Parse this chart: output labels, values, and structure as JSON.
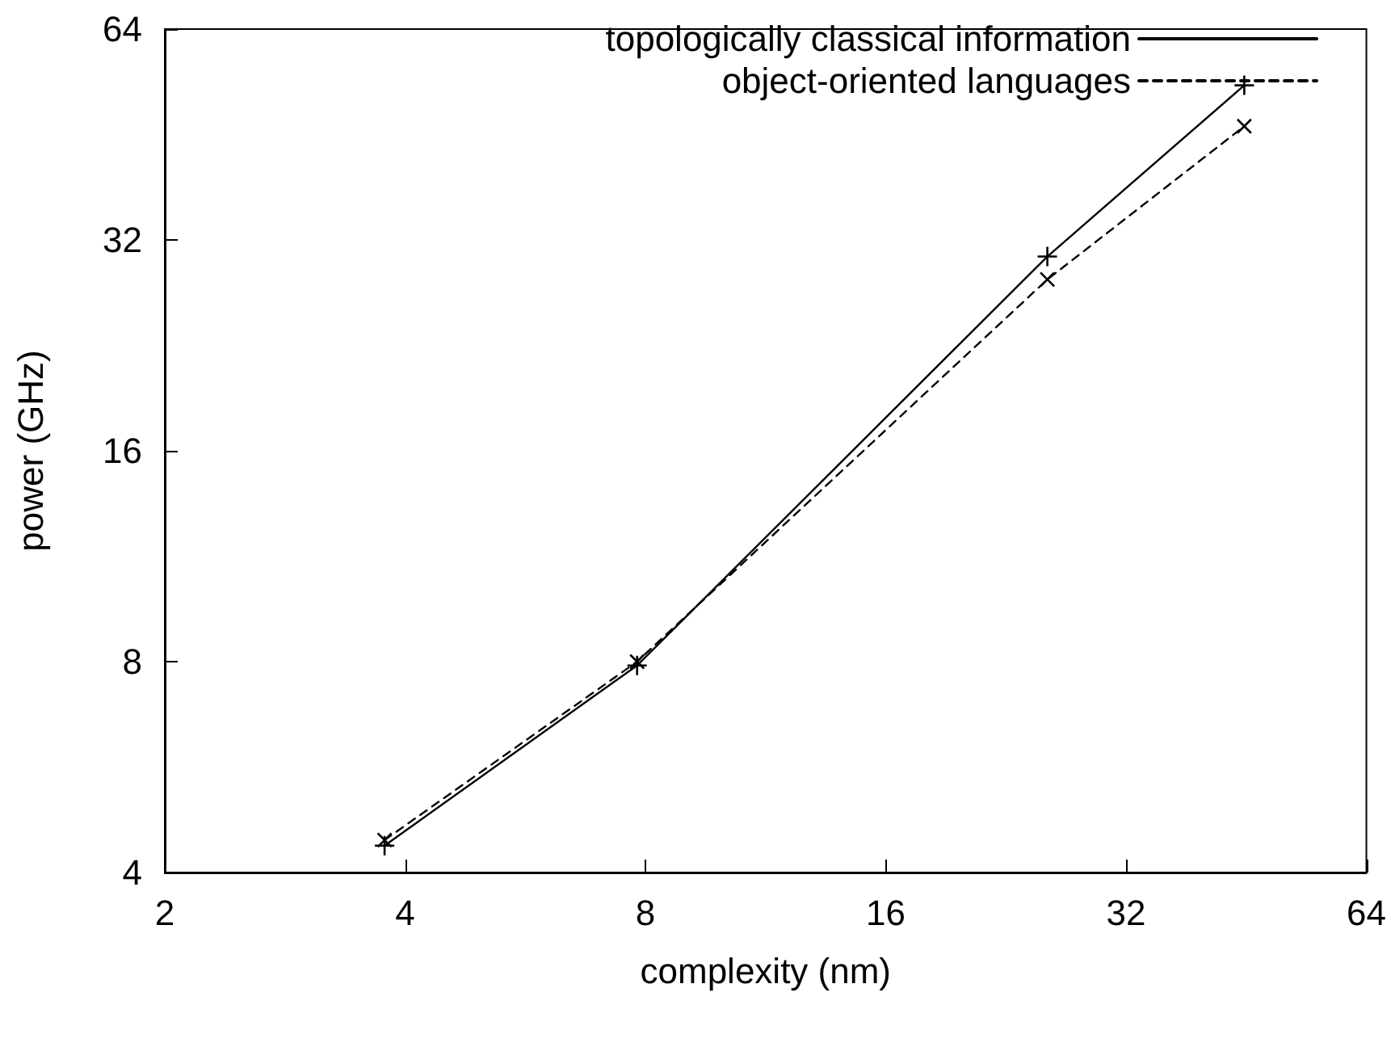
{
  "chart_data": {
    "type": "line",
    "xlabel": "complexity (nm)",
    "ylabel": "power (GHz)",
    "log": "xy",
    "xlim": [
      2,
      64
    ],
    "ylim": [
      4,
      64
    ],
    "xticks": [
      2,
      4,
      8,
      16,
      32,
      64
    ],
    "yticks": [
      4,
      8,
      16,
      32,
      64
    ],
    "grid": false,
    "legend": "top right",
    "marker": "cross",
    "series": [
      {
        "name": "topologically classical information",
        "color": "#000000",
        "line_style": "solid",
        "x": [
          3.77,
          7.81,
          25.5,
          45
        ],
        "values": [
          4.37,
          7.9,
          30.3,
          53.2
        ]
      },
      {
        "name": "object-oriented languages",
        "color": "#000000",
        "line_style": "dashed",
        "x": [
          3.77,
          7.81,
          25.5,
          45
        ],
        "values": [
          4.45,
          8.0,
          28.1,
          46.5
        ]
      }
    ]
  }
}
